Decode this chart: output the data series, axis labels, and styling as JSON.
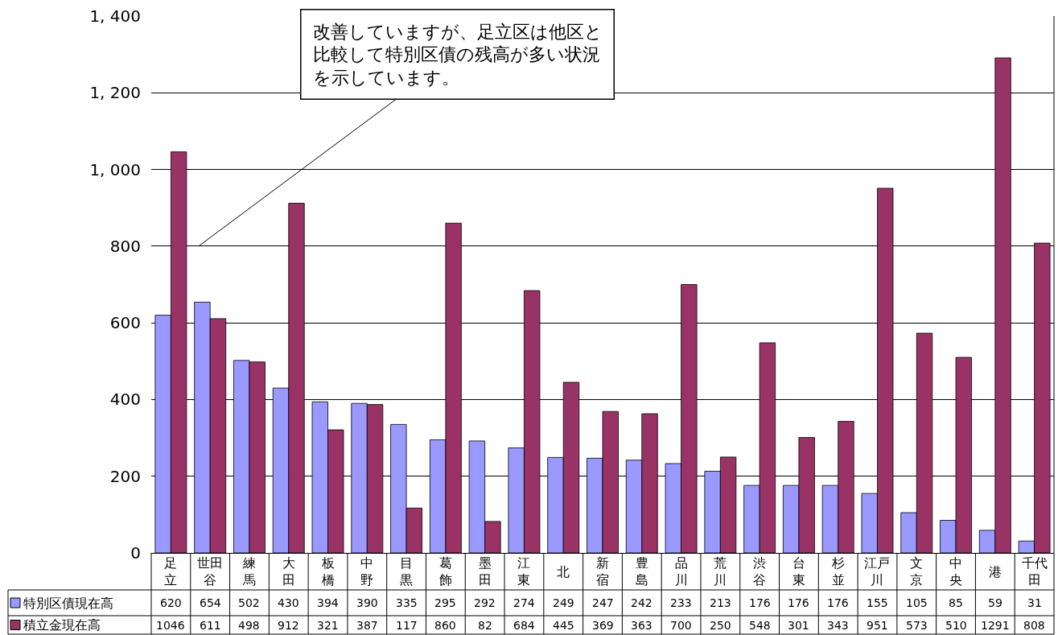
{
  "chart_data": {
    "type": "bar",
    "categories": [
      "足立",
      "世田谷",
      "練馬",
      "大田",
      "板橋",
      "中野",
      "目黒",
      "葛飾",
      "墨田",
      "江東",
      "北",
      "新宿",
      "豊島",
      "品川",
      "荒川",
      "渋谷",
      "台東",
      "杉並",
      "江戸川",
      "文京",
      "中央",
      "港",
      "千代田"
    ],
    "series": [
      {
        "name": "特別区債現在高",
        "color": "#9999ff",
        "values": [
          620,
          654,
          502,
          430,
          394,
          390,
          335,
          295,
          292,
          274,
          249,
          247,
          242,
          233,
          213,
          176,
          176,
          176,
          155,
          105,
          85,
          59,
          31
        ]
      },
      {
        "name": "積立金現在高",
        "color": "#993366",
        "values": [
          1046,
          611,
          498,
          912,
          321,
          387,
          117,
          860,
          82,
          684,
          445,
          369,
          363,
          700,
          250,
          548,
          301,
          343,
          951,
          573,
          510,
          1291,
          808
        ]
      }
    ],
    "ylim": [
      0,
      1400
    ],
    "yticks": [
      0,
      200,
      400,
      600,
      800,
      {
        "value": 1000,
        "label": "1, 000"
      },
      {
        "value": 1200,
        "label": "1, 200"
      },
      {
        "value": 1400,
        "label": "1, 400"
      }
    ],
    "grid": "y",
    "legend": "bottom left",
    "data_labels": true,
    "annotations": [
      "改善していますが、足立区は他区と比較して特別区債の残高が多い状況を示しています。"
    ]
  }
}
